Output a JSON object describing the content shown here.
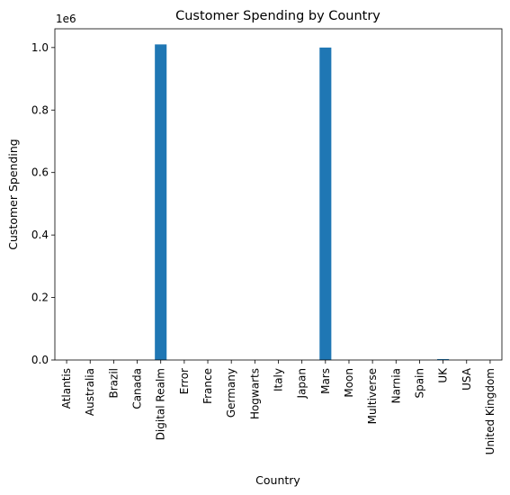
{
  "chart_data": {
    "type": "bar",
    "title": "Customer Spending by Country",
    "xlabel": "Country",
    "ylabel": "Customer Spending",
    "y_offset_label": "1e6",
    "categories": [
      "Atlantis",
      "Australia",
      "Brazil",
      "Canada",
      "Digital Realm",
      "Error",
      "France",
      "Germany",
      "Hogwarts",
      "Italy",
      "Japan",
      "Mars",
      "Moon",
      "Multiverse",
      "Narnia",
      "Spain",
      "UK",
      "USA",
      "United Kingdom"
    ],
    "values": [
      0,
      0,
      0,
      0,
      1010000,
      0,
      0,
      0,
      0,
      0,
      0,
      1000000,
      0,
      0,
      0,
      0,
      3000,
      0,
      0
    ],
    "ylim": [
      0,
      1060000
    ],
    "yticks": [
      0,
      200000,
      400000,
      600000,
      800000,
      1000000
    ],
    "ytick_labels": [
      "0.0",
      "0.2",
      "0.4",
      "0.6",
      "0.8",
      "1.0"
    ],
    "bar_color": "#1f77b4",
    "grid": false,
    "legend": "none"
  }
}
